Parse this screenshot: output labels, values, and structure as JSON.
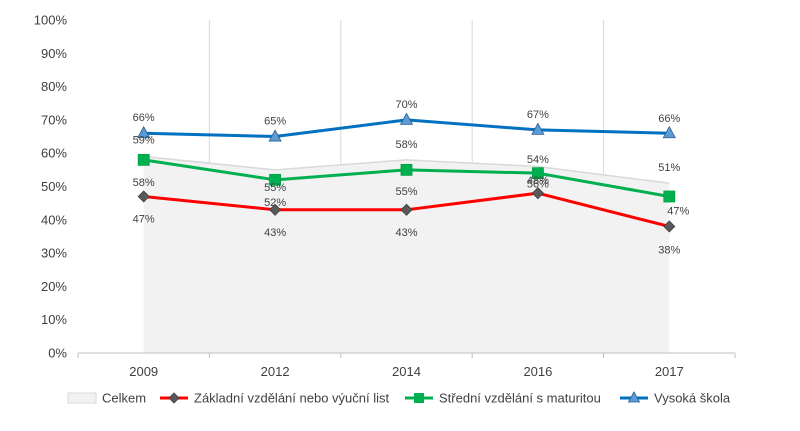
{
  "chart_data": {
    "type": "line",
    "categories": [
      "2009",
      "2012",
      "2014",
      "2016",
      "2017"
    ],
    "ylim": [
      0,
      100
    ],
    "yticks": [
      0,
      10,
      20,
      30,
      40,
      50,
      60,
      70,
      80,
      90,
      100
    ],
    "ytick_format": "percent",
    "grid": "vertical",
    "legend_position": "bottom",
    "series": [
      {
        "name": "Celkem",
        "kind": "area",
        "color": "#d9d9d9",
        "fill": "#f2f2f2",
        "values": [
          59,
          55,
          58,
          56,
          51
        ]
      },
      {
        "name": "Základní vzdělání nebo výuční list",
        "kind": "line",
        "marker": "diamond",
        "color": "#ff0000",
        "marker_color": "#595959",
        "values": [
          47,
          43,
          43,
          48,
          38
        ]
      },
      {
        "name": "Střední vzdělání s maturitou",
        "kind": "line",
        "marker": "square",
        "color": "#00b050",
        "marker_color": "#00b050",
        "values": [
          58,
          52,
          55,
          54,
          47
        ]
      },
      {
        "name": "Vysoká škola",
        "kind": "line",
        "marker": "triangle",
        "color": "#0070c0",
        "marker_color": "#5b9bd5",
        "values": [
          66,
          65,
          70,
          67,
          66
        ]
      }
    ]
  }
}
